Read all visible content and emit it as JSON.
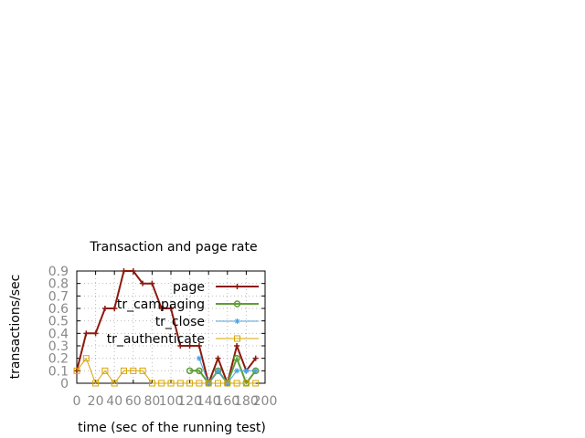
{
  "chart_data": {
    "type": "line",
    "title": "Transaction and page rate",
    "xlabel": "time (sec of the running test)",
    "ylabel": "transactions/sec",
    "xlim": [
      0,
      200
    ],
    "ylim": [
      0,
      0.9
    ],
    "x_ticks": [
      "0",
      "20",
      "40",
      "60",
      "80",
      "100",
      "120",
      "140",
      "160",
      "180",
      "200"
    ],
    "y_ticks": [
      "0",
      "0.1",
      "0.2",
      "0.3",
      "0.4",
      "0.5",
      "0.6",
      "0.7",
      "0.8",
      "0.9"
    ],
    "grid": true,
    "legend_position": "top-right",
    "series": [
      {
        "name": "page",
        "color": "#8b1a0e",
        "marker": "plus",
        "x": [
          0,
          10,
          20,
          30,
          40,
          50,
          60,
          70,
          80,
          90,
          100,
          110,
          120,
          130,
          140,
          150,
          160,
          170,
          180,
          190
        ],
        "y": [
          0.1,
          0.4,
          0.4,
          0.6,
          0.6,
          0.9,
          0.9,
          0.8,
          0.8,
          0.6,
          0.6,
          0.3,
          0.3,
          0.3,
          0.0,
          0.2,
          0.0,
          0.3,
          0.1,
          0.2
        ]
      },
      {
        "name": "tr_campaging",
        "color": "#5e9c36",
        "marker": "circle",
        "x": [
          120,
          130,
          140,
          150,
          160,
          170,
          180,
          190
        ],
        "y": [
          0.1,
          0.1,
          0.0,
          0.1,
          0.0,
          0.2,
          0.0,
          0.1
        ]
      },
      {
        "name": "tr_close",
        "color": "#4ba3e0",
        "marker": "star",
        "x": [
          130,
          140,
          150,
          160,
          170,
          180,
          190
        ],
        "y": [
          0.2,
          0.0,
          0.1,
          0.0,
          0.1,
          0.1,
          0.1
        ]
      },
      {
        "name": "tr_authenticate",
        "color": "#d8a400",
        "marker": "square",
        "x": [
          0,
          10,
          20,
          30,
          40,
          50,
          60,
          70,
          80,
          90,
          100,
          110,
          120,
          130,
          140,
          150,
          160,
          170,
          180,
          190
        ],
        "y": [
          0.1,
          0.2,
          0.0,
          0.1,
          0.0,
          0.1,
          0.1,
          0.1,
          0.0,
          0.0,
          0.0,
          0.0,
          0.0,
          0.0,
          0.0,
          0.0,
          0.0,
          0.0,
          0.0,
          0.0
        ]
      }
    ]
  }
}
